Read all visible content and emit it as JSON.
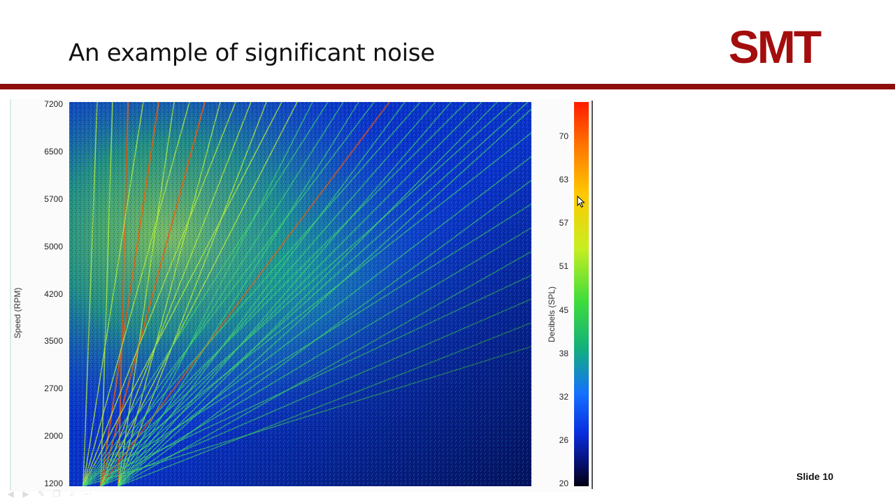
{
  "slide": {
    "title": "An example of significant noise",
    "logo_text": "SMT",
    "number_label": "Slide 10"
  },
  "colors": {
    "brand_red": "#8e0e0e",
    "plot_background": "#0a2fc8"
  },
  "chart_data": {
    "type": "heatmap",
    "title": "",
    "ylabel": "Speed (RPM)",
    "xlabel": "",
    "y_ticks": [
      "7200",
      "6500",
      "5700",
      "5000",
      "4200",
      "3500",
      "2700",
      "2000",
      "1200"
    ],
    "ylim": [
      1200,
      7200
    ],
    "colorbar": {
      "label": "Decibels (SPL)",
      "ticks": [
        "70",
        "63",
        "57",
        "51",
        "45",
        "38",
        "32",
        "26",
        "20"
      ],
      "range": [
        20,
        74
      ]
    }
  },
  "toolbar": {
    "icons": [
      "previous-icon",
      "next-icon",
      "pen-icon",
      "copy-icon",
      "zoom-icon",
      "more-icon"
    ]
  }
}
